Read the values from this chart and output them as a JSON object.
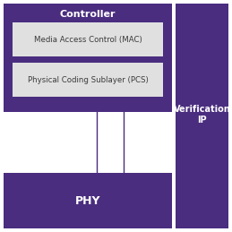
{
  "bg_color": "#ffffff",
  "purple_dark": "#4a2d7f",
  "gray_light": "#e0e0e0",
  "white": "#ffffff",
  "text_white": "#ffffff",
  "text_dark": "#3a3a3a",
  "controller_label": "Controller",
  "mac_label": "Media Access Control (MAC)",
  "pcs_label": "Physical Coding Sublayer (PCS)",
  "phy_label": "PHY",
  "verification_label": "Verification\nIP",
  "fig_width": 2.59,
  "fig_height": 2.59,
  "dpi": 100
}
